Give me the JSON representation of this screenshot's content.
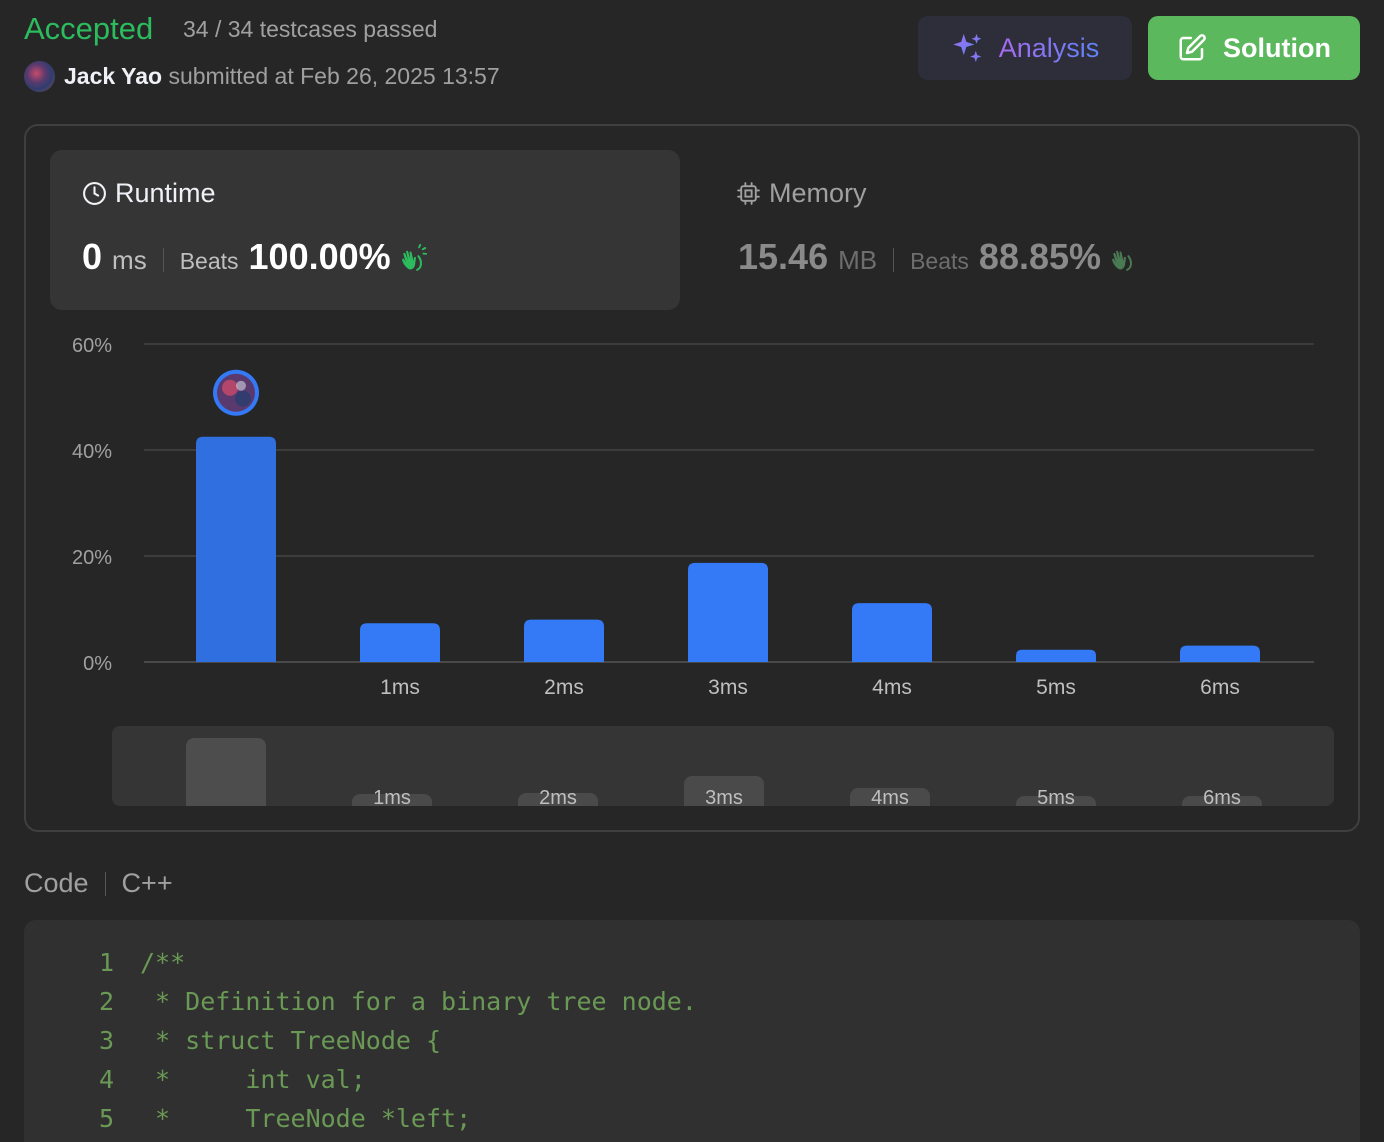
{
  "header": {
    "status": "Accepted",
    "testcases": "34 / 34 testcases passed",
    "user": "Jack Yao",
    "submitted_text": "submitted at Feb 26, 2025 13:57"
  },
  "buttons": {
    "analysis_label": "Analysis",
    "solution_label": "Solution"
  },
  "runtime": {
    "title": "Runtime",
    "value": "0",
    "unit": "ms",
    "beats_label": "Beats",
    "beats_pct": "100.00%"
  },
  "memory": {
    "title": "Memory",
    "value": "15.46",
    "unit": "MB",
    "beats_label": "Beats",
    "beats_pct": "88.85%"
  },
  "chart_data": {
    "type": "bar",
    "categories": [
      "",
      "1ms",
      "2ms",
      "3ms",
      "4ms",
      "5ms",
      "6ms"
    ],
    "values": [
      42.5,
      7.3,
      8.0,
      18.7,
      11.1,
      2.3,
      3.1
    ],
    "ylim": [
      0,
      60
    ],
    "yticks": [
      "0%",
      "20%",
      "40%",
      "60%"
    ],
    "highlight_index": 0,
    "bar_color": "#3479f6",
    "grid": true
  },
  "scroller": {
    "labels": [
      "",
      "1ms",
      "2ms",
      "3ms",
      "4ms",
      "5ms",
      "6ms"
    ]
  },
  "code": {
    "label": "Code",
    "language": "C++",
    "lines": [
      "/**",
      " * Definition for a binary tree node.",
      " * struct TreeNode {",
      " *     int val;",
      " *     TreeNode *left;"
    ]
  },
  "colors": {
    "accepted": "#2cbb5d",
    "solution_button": "#5cb85c",
    "bar": "#3479f6",
    "code_comment": "#6a9955"
  }
}
